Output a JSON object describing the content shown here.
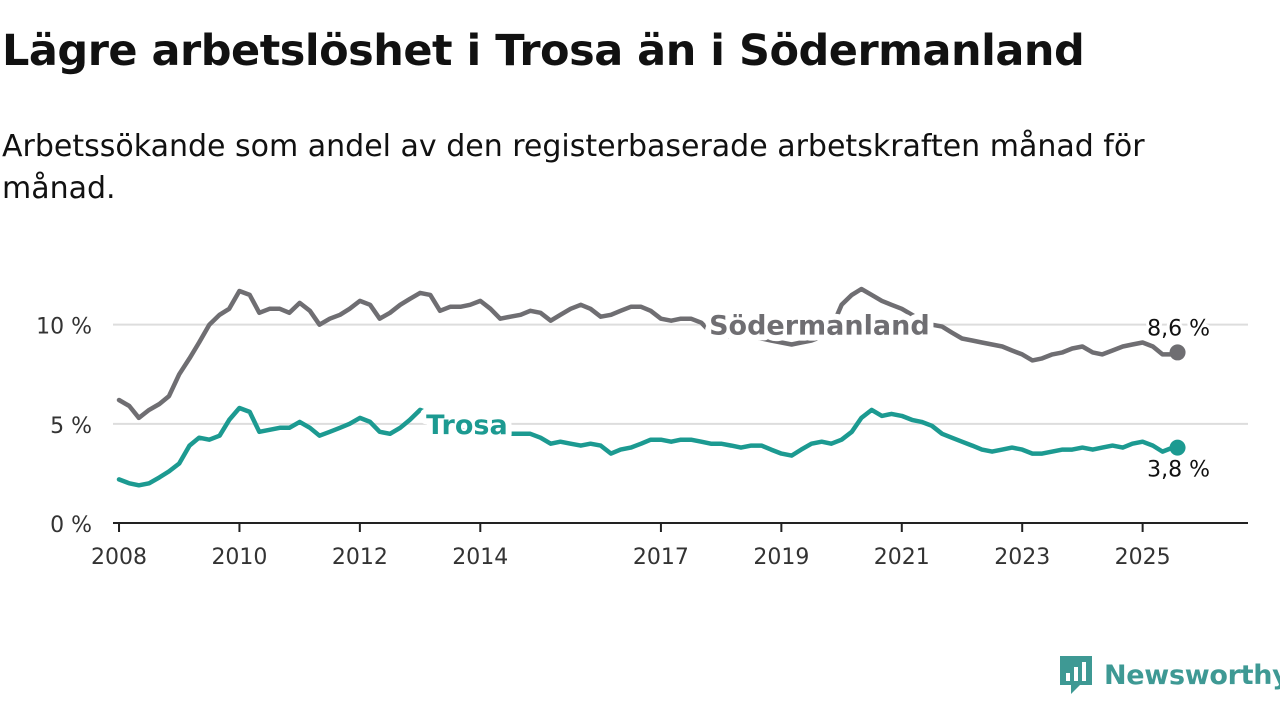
{
  "title": "Lägre arbetslöshet i Trosa än i Södermanland",
  "subtitle": "Arbetssökande som andel av den registerbaserade arbetskraften månad för månad.",
  "brand": {
    "name": "Newsworthy",
    "color": "#3e9994",
    "icon": "newsworthy-logo-icon"
  },
  "chart_data": {
    "type": "line",
    "title": "Lägre arbetslöshet i Trosa än i Södermanland",
    "subtitle": "Arbetssökande som andel av den registerbaserade arbetskraften månad för månad.",
    "xlabel": "",
    "ylabel": "",
    "xlim": [
      2007.9,
      2026.75
    ],
    "ylim": [
      0,
      12
    ],
    "x_ticks": [
      2008,
      2010,
      2012,
      2014,
      2017,
      2019,
      2021,
      2023,
      2025
    ],
    "x_tick_labels": [
      "2008",
      "2010",
      "2012",
      "2014",
      "2017",
      "2019",
      "2021",
      "2023",
      "2025"
    ],
    "y_ticks": [
      0,
      5,
      10
    ],
    "y_tick_labels": [
      "0 %",
      "5 %",
      "10 %"
    ],
    "grid": "horizontal",
    "legend": "none",
    "series": [
      {
        "name": "Södermanland",
        "color": "#6f6e72",
        "end_label": "8,6 %",
        "points": [
          [
            2008.0,
            6.2
          ],
          [
            2008.17,
            5.9
          ],
          [
            2008.33,
            5.3
          ],
          [
            2008.5,
            5.7
          ],
          [
            2008.67,
            6.0
          ],
          [
            2008.83,
            6.4
          ],
          [
            2009.0,
            7.5
          ],
          [
            2009.17,
            8.3
          ],
          [
            2009.33,
            9.1
          ],
          [
            2009.5,
            10.0
          ],
          [
            2009.67,
            10.5
          ],
          [
            2009.83,
            10.8
          ],
          [
            2010.0,
            11.7
          ],
          [
            2010.17,
            11.5
          ],
          [
            2010.33,
            10.6
          ],
          [
            2010.5,
            10.8
          ],
          [
            2010.67,
            10.8
          ],
          [
            2010.83,
            10.6
          ],
          [
            2011.0,
            11.1
          ],
          [
            2011.17,
            10.7
          ],
          [
            2011.33,
            10.0
          ],
          [
            2011.5,
            10.3
          ],
          [
            2011.67,
            10.5
          ],
          [
            2011.83,
            10.8
          ],
          [
            2012.0,
            11.2
          ],
          [
            2012.17,
            11.0
          ],
          [
            2012.33,
            10.3
          ],
          [
            2012.5,
            10.6
          ],
          [
            2012.67,
            11.0
          ],
          [
            2012.83,
            11.3
          ],
          [
            2013.0,
            11.6
          ],
          [
            2013.17,
            11.5
          ],
          [
            2013.33,
            10.7
          ],
          [
            2013.5,
            10.9
          ],
          [
            2013.67,
            10.9
          ],
          [
            2013.83,
            11.0
          ],
          [
            2014.0,
            11.2
          ],
          [
            2014.17,
            10.8
          ],
          [
            2014.33,
            10.3
          ],
          [
            2014.5,
            10.4
          ],
          [
            2014.67,
            10.5
          ],
          [
            2014.83,
            10.7
          ],
          [
            2015.0,
            10.6
          ],
          [
            2015.17,
            10.2
          ],
          [
            2015.33,
            10.5
          ],
          [
            2015.5,
            10.8
          ],
          [
            2015.67,
            11.0
          ],
          [
            2015.83,
            10.8
          ],
          [
            2016.0,
            10.4
          ],
          [
            2016.17,
            10.5
          ],
          [
            2016.33,
            10.7
          ],
          [
            2016.5,
            10.9
          ],
          [
            2016.67,
            10.9
          ],
          [
            2016.83,
            10.7
          ],
          [
            2017.0,
            10.3
          ],
          [
            2017.17,
            10.2
          ],
          [
            2017.33,
            10.3
          ],
          [
            2017.5,
            10.3
          ],
          [
            2017.67,
            10.1
          ],
          [
            2017.83,
            9.6
          ],
          [
            2018.0,
            9.5
          ],
          [
            2018.17,
            9.4
          ],
          [
            2018.33,
            9.5
          ],
          [
            2018.5,
            9.4
          ],
          [
            2018.67,
            9.3
          ],
          [
            2018.83,
            9.2
          ],
          [
            2019.0,
            9.1
          ],
          [
            2019.17,
            9.0
          ],
          [
            2019.33,
            9.1
          ],
          [
            2019.5,
            9.2
          ],
          [
            2019.67,
            9.4
          ],
          [
            2019.83,
            9.8
          ],
          [
            2020.0,
            11.0
          ],
          [
            2020.17,
            11.5
          ],
          [
            2020.33,
            11.8
          ],
          [
            2020.5,
            11.5
          ],
          [
            2020.67,
            11.2
          ],
          [
            2020.83,
            11.0
          ],
          [
            2021.0,
            10.8
          ],
          [
            2021.17,
            10.5
          ],
          [
            2021.33,
            10.2
          ],
          [
            2021.5,
            10.0
          ],
          [
            2021.67,
            9.9
          ],
          [
            2021.83,
            9.6
          ],
          [
            2022.0,
            9.3
          ],
          [
            2022.17,
            9.2
          ],
          [
            2022.33,
            9.1
          ],
          [
            2022.5,
            9.0
          ],
          [
            2022.67,
            8.9
          ],
          [
            2022.83,
            8.7
          ],
          [
            2023.0,
            8.5
          ],
          [
            2023.17,
            8.2
          ],
          [
            2023.33,
            8.3
          ],
          [
            2023.5,
            8.5
          ],
          [
            2023.67,
            8.6
          ],
          [
            2023.83,
            8.8
          ],
          [
            2024.0,
            8.9
          ],
          [
            2024.17,
            8.6
          ],
          [
            2024.33,
            8.5
          ],
          [
            2024.5,
            8.7
          ],
          [
            2024.67,
            8.9
          ],
          [
            2024.83,
            9.0
          ],
          [
            2025.0,
            9.1
          ],
          [
            2025.17,
            8.9
          ],
          [
            2025.33,
            8.5
          ],
          [
            2025.5,
            8.5
          ],
          [
            2025.58,
            8.6
          ]
        ]
      },
      {
        "name": "Trosa",
        "color": "#1c9a91",
        "end_label": "3,8 %",
        "points": [
          [
            2008.0,
            2.2
          ],
          [
            2008.17,
            2.0
          ],
          [
            2008.33,
            1.9
          ],
          [
            2008.5,
            2.0
          ],
          [
            2008.67,
            2.3
          ],
          [
            2008.83,
            2.6
          ],
          [
            2009.0,
            3.0
          ],
          [
            2009.17,
            3.9
          ],
          [
            2009.33,
            4.3
          ],
          [
            2009.5,
            4.2
          ],
          [
            2009.67,
            4.4
          ],
          [
            2009.83,
            5.2
          ],
          [
            2010.0,
            5.8
          ],
          [
            2010.17,
            5.6
          ],
          [
            2010.33,
            4.6
          ],
          [
            2010.5,
            4.7
          ],
          [
            2010.67,
            4.8
          ],
          [
            2010.83,
            4.8
          ],
          [
            2011.0,
            5.1
          ],
          [
            2011.17,
            4.8
          ],
          [
            2011.33,
            4.4
          ],
          [
            2011.5,
            4.6
          ],
          [
            2011.67,
            4.8
          ],
          [
            2011.83,
            5.0
          ],
          [
            2012.0,
            5.3
          ],
          [
            2012.17,
            5.1
          ],
          [
            2012.33,
            4.6
          ],
          [
            2012.5,
            4.5
          ],
          [
            2012.67,
            4.8
          ],
          [
            2012.83,
            5.2
          ],
          [
            2013.0,
            5.7
          ],
          [
            2013.17,
            5.5
          ],
          [
            2013.33,
            5.0
          ],
          [
            2013.5,
            4.8
          ],
          [
            2013.67,
            4.7
          ],
          [
            2013.83,
            4.6
          ],
          [
            2014.0,
            4.5
          ],
          [
            2014.17,
            4.4
          ],
          [
            2014.33,
            4.3
          ],
          [
            2014.5,
            4.5
          ],
          [
            2014.67,
            4.5
          ],
          [
            2014.83,
            4.5
          ],
          [
            2015.0,
            4.3
          ],
          [
            2015.17,
            4.0
          ],
          [
            2015.33,
            4.1
          ],
          [
            2015.5,
            4.0
          ],
          [
            2015.67,
            3.9
          ],
          [
            2015.83,
            4.0
          ],
          [
            2016.0,
            3.9
          ],
          [
            2016.17,
            3.5
          ],
          [
            2016.33,
            3.7
          ],
          [
            2016.5,
            3.8
          ],
          [
            2016.67,
            4.0
          ],
          [
            2016.83,
            4.2
          ],
          [
            2017.0,
            4.2
          ],
          [
            2017.17,
            4.1
          ],
          [
            2017.33,
            4.2
          ],
          [
            2017.5,
            4.2
          ],
          [
            2017.67,
            4.1
          ],
          [
            2017.83,
            4.0
          ],
          [
            2018.0,
            4.0
          ],
          [
            2018.17,
            3.9
          ],
          [
            2018.33,
            3.8
          ],
          [
            2018.5,
            3.9
          ],
          [
            2018.67,
            3.9
          ],
          [
            2018.83,
            3.7
          ],
          [
            2019.0,
            3.5
          ],
          [
            2019.17,
            3.4
          ],
          [
            2019.33,
            3.7
          ],
          [
            2019.5,
            4.0
          ],
          [
            2019.67,
            4.1
          ],
          [
            2019.83,
            4.0
          ],
          [
            2020.0,
            4.2
          ],
          [
            2020.17,
            4.6
          ],
          [
            2020.33,
            5.3
          ],
          [
            2020.5,
            5.7
          ],
          [
            2020.67,
            5.4
          ],
          [
            2020.83,
            5.5
          ],
          [
            2021.0,
            5.4
          ],
          [
            2021.17,
            5.2
          ],
          [
            2021.33,
            5.1
          ],
          [
            2021.5,
            4.9
          ],
          [
            2021.67,
            4.5
          ],
          [
            2021.83,
            4.3
          ],
          [
            2022.0,
            4.1
          ],
          [
            2022.17,
            3.9
          ],
          [
            2022.33,
            3.7
          ],
          [
            2022.5,
            3.6
          ],
          [
            2022.67,
            3.7
          ],
          [
            2022.83,
            3.8
          ],
          [
            2023.0,
            3.7
          ],
          [
            2023.17,
            3.5
          ],
          [
            2023.33,
            3.5
          ],
          [
            2023.5,
            3.6
          ],
          [
            2023.67,
            3.7
          ],
          [
            2023.83,
            3.7
          ],
          [
            2024.0,
            3.8
          ],
          [
            2024.17,
            3.7
          ],
          [
            2024.33,
            3.8
          ],
          [
            2024.5,
            3.9
          ],
          [
            2024.67,
            3.8
          ],
          [
            2024.83,
            4.0
          ],
          [
            2025.0,
            4.1
          ],
          [
            2025.17,
            3.9
          ],
          [
            2025.33,
            3.6
          ],
          [
            2025.5,
            3.8
          ],
          [
            2025.58,
            3.8
          ]
        ]
      }
    ]
  }
}
